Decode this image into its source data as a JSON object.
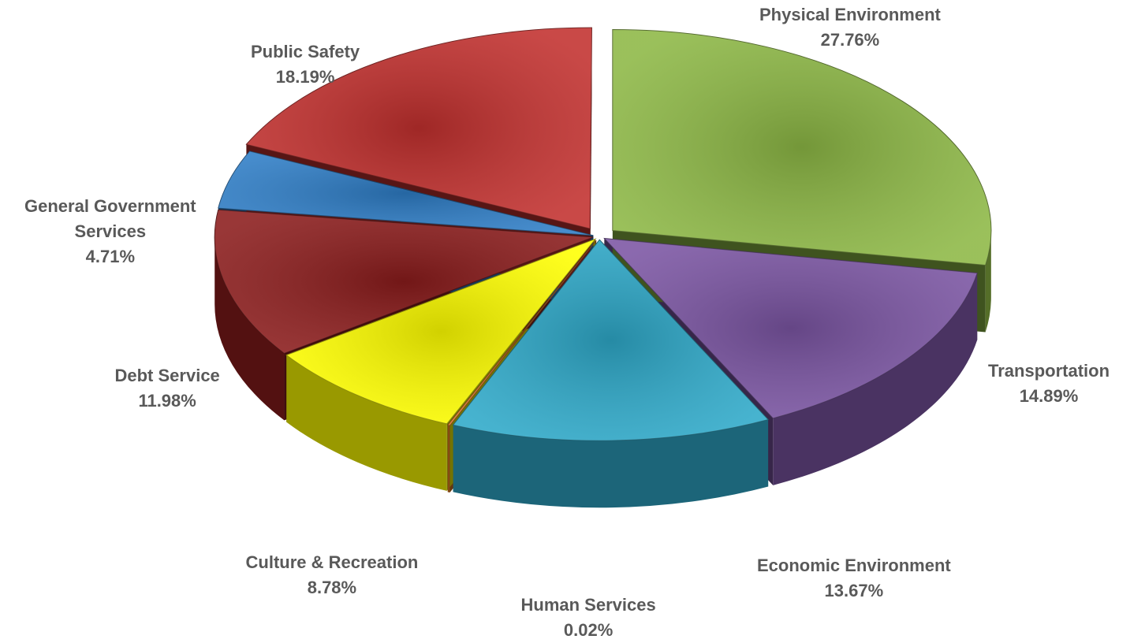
{
  "chart_data": {
    "type": "pie",
    "style": "3d-exploded",
    "categories": [
      "Physical Environment",
      "Transportation",
      "Economic Environment",
      "Human Services",
      "Culture & Recreation",
      "Debt Service",
      "General Government Services",
      "Public Safety"
    ],
    "values": [
      27.76,
      14.89,
      13.67,
      0.02,
      8.78,
      11.98,
      4.71,
      18.19
    ],
    "value_labels": [
      "27.76%",
      "14.89%",
      "13.67%",
      "0.02%",
      "8.78%",
      "11.98%",
      "4.71%",
      "18.19%"
    ],
    "label_lines": [
      [
        "Physical Environment"
      ],
      [
        "Transportation"
      ],
      [
        "Economic Environment"
      ],
      [
        "Human Services"
      ],
      [
        "Culture & Recreation"
      ],
      [
        "Debt Service"
      ],
      [
        "General Government",
        "Services"
      ],
      [
        "Public Safety"
      ]
    ],
    "colors": [
      "#8db845",
      "#7b55a3",
      "#2ea9c9",
      "#e07a20",
      "#ffff00",
      "#8b1c1c",
      "#2e7dc6",
      "#c2302e"
    ],
    "legend": "none"
  }
}
